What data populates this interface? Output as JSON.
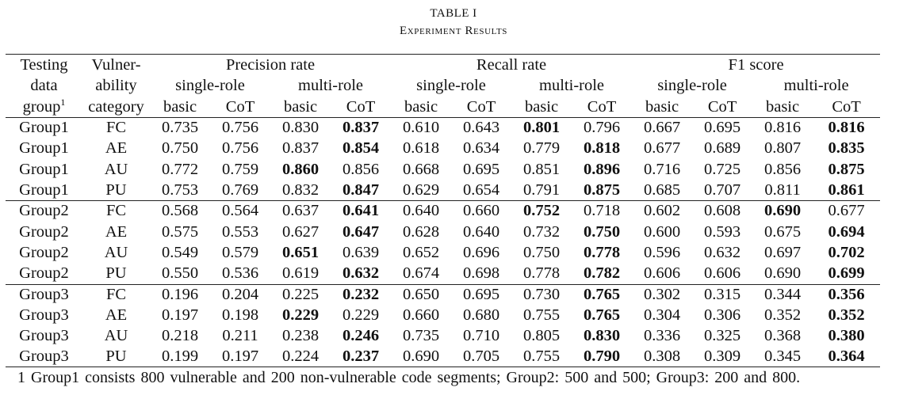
{
  "caption": {
    "label": "TABLE I",
    "title": "Experiment Results"
  },
  "header": {
    "col1": [
      "Testing",
      "data",
      "group"
    ],
    "col1_sup": "1",
    "col2": [
      "Vulner-",
      "ability",
      "category"
    ],
    "groups": [
      "Precision rate",
      "Recall rate",
      "F1 score"
    ],
    "roles": [
      "single-role",
      "multi-role",
      "single-role",
      "multi-role",
      "single-role",
      "multi-role"
    ],
    "methods": [
      "basic",
      "CoT",
      "basic",
      "CoT",
      "basic",
      "CoT",
      "basic",
      "CoT",
      "basic",
      "CoT",
      "basic",
      "CoT"
    ]
  },
  "rows": [
    {
      "group": "Group1",
      "cat": "FC",
      "values": [
        "0.735",
        "0.756",
        "0.830",
        "0.837",
        "0.610",
        "0.643",
        "0.801",
        "0.796",
        "0.667",
        "0.695",
        "0.816",
        "0.816"
      ],
      "bold": [
        3,
        6,
        11
      ]
    },
    {
      "group": "Group1",
      "cat": "AE",
      "values": [
        "0.750",
        "0.756",
        "0.837",
        "0.854",
        "0.618",
        "0.634",
        "0.779",
        "0.818",
        "0.677",
        "0.689",
        "0.807",
        "0.835"
      ],
      "bold": [
        3,
        7,
        11
      ]
    },
    {
      "group": "Group1",
      "cat": "AU",
      "values": [
        "0.772",
        "0.759",
        "0.860",
        "0.856",
        "0.668",
        "0.695",
        "0.851",
        "0.896",
        "0.716",
        "0.725",
        "0.856",
        "0.875"
      ],
      "bold": [
        2,
        7,
        11
      ]
    },
    {
      "group": "Group1",
      "cat": "PU",
      "values": [
        "0.753",
        "0.769",
        "0.832",
        "0.847",
        "0.629",
        "0.654",
        "0.791",
        "0.875",
        "0.685",
        "0.707",
        "0.811",
        "0.861"
      ],
      "bold": [
        3,
        7,
        11
      ]
    },
    {
      "group": "Group2",
      "cat": "FC",
      "values": [
        "0.568",
        "0.564",
        "0.637",
        "0.641",
        "0.640",
        "0.660",
        "0.752",
        "0.718",
        "0.602",
        "0.608",
        "0.690",
        "0.677"
      ],
      "bold": [
        3,
        6,
        10
      ]
    },
    {
      "group": "Group2",
      "cat": "AE",
      "values": [
        "0.575",
        "0.553",
        "0.627",
        "0.647",
        "0.628",
        "0.640",
        "0.732",
        "0.750",
        "0.600",
        "0.593",
        "0.675",
        "0.694"
      ],
      "bold": [
        3,
        7,
        11
      ]
    },
    {
      "group": "Group2",
      "cat": "AU",
      "values": [
        "0.549",
        "0.579",
        "0.651",
        "0.639",
        "0.652",
        "0.696",
        "0.750",
        "0.778",
        "0.596",
        "0.632",
        "0.697",
        "0.702"
      ],
      "bold": [
        2,
        7,
        11
      ]
    },
    {
      "group": "Group2",
      "cat": "PU",
      "values": [
        "0.550",
        "0.536",
        "0.619",
        "0.632",
        "0.674",
        "0.698",
        "0.778",
        "0.782",
        "0.606",
        "0.606",
        "0.690",
        "0.699"
      ],
      "bold": [
        3,
        7,
        11
      ]
    },
    {
      "group": "Group3",
      "cat": "FC",
      "values": [
        "0.196",
        "0.204",
        "0.225",
        "0.232",
        "0.650",
        "0.695",
        "0.730",
        "0.765",
        "0.302",
        "0.315",
        "0.344",
        "0.356"
      ],
      "bold": [
        3,
        7,
        11
      ]
    },
    {
      "group": "Group3",
      "cat": "AE",
      "values": [
        "0.197",
        "0.198",
        "0.229",
        "0.229",
        "0.660",
        "0.680",
        "0.755",
        "0.765",
        "0.304",
        "0.306",
        "0.352",
        "0.352"
      ],
      "bold": [
        2,
        7,
        11
      ]
    },
    {
      "group": "Group3",
      "cat": "AU",
      "values": [
        "0.218",
        "0.211",
        "0.238",
        "0.246",
        "0.735",
        "0.710",
        "0.805",
        "0.830",
        "0.336",
        "0.325",
        "0.368",
        "0.380"
      ],
      "bold": [
        3,
        7,
        11
      ]
    },
    {
      "group": "Group3",
      "cat": "PU",
      "values": [
        "0.199",
        "0.197",
        "0.224",
        "0.237",
        "0.690",
        "0.705",
        "0.755",
        "0.790",
        "0.308",
        "0.309",
        "0.345",
        "0.364"
      ],
      "bold": [
        3,
        7,
        11
      ]
    }
  ],
  "footnote": "1 Group1 consists 800 vulnerable and 200 non-vulnerable code segments; Group2: 500 and 500; Group3: 200 and 800."
}
